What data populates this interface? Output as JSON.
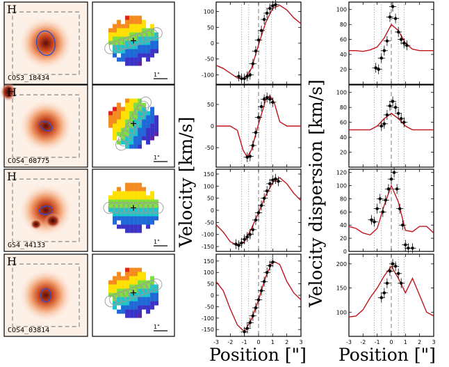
{
  "rows": [
    {
      "id": "COS3_18434",
      "band": "H",
      "scale": "1\"",
      "ellipse": {
        "rx": 0.11,
        "ry": 0.15,
        "rot": -10
      },
      "kin_angle": 72,
      "slit_offset": 0,
      "kin_gradient": [
        "#e0221e",
        "#f58a1e",
        "#ffe000",
        "#7ee03a",
        "#15c7c9",
        "#1e69d8",
        "#3b33c8",
        "#5d22a5"
      ],
      "velocity": {
        "ylim": [
          -130,
          130
        ],
        "yticks": [
          -100,
          -50,
          0,
          50,
          100
        ],
        "points": [
          [
            -1.4,
            -105
          ],
          [
            -1.2,
            -112
          ],
          [
            -1.0,
            -112
          ],
          [
            -0.8,
            -105
          ],
          [
            -0.6,
            -100
          ],
          [
            -0.4,
            -65
          ],
          [
            -0.2,
            -25
          ],
          [
            0.0,
            10
          ],
          [
            0.2,
            40
          ],
          [
            0.4,
            75
          ],
          [
            0.6,
            95
          ],
          [
            0.8,
            110
          ],
          [
            1.0,
            118
          ],
          [
            1.2,
            122
          ]
        ],
        "curve": [
          [
            -3,
            -70
          ],
          [
            -2.5,
            -80
          ],
          [
            -2.0,
            -95
          ],
          [
            -1.5,
            -110
          ],
          [
            -1.0,
            -112
          ],
          [
            -0.5,
            -80
          ],
          [
            0.0,
            -5
          ],
          [
            0.5,
            65
          ],
          [
            1.0,
            110
          ],
          [
            1.5,
            120
          ],
          [
            2.0,
            105
          ],
          [
            2.5,
            80
          ],
          [
            3.0,
            62
          ]
        ]
      },
      "dispersion": {
        "ylim": [
          0,
          110
        ],
        "yticks": [
          20,
          40,
          60,
          80,
          100
        ],
        "points": [
          [
            -1.1,
            22
          ],
          [
            -0.9,
            20
          ],
          [
            -0.7,
            35
          ],
          [
            -0.5,
            45
          ],
          [
            -0.3,
            58
          ],
          [
            -0.1,
            90
          ],
          [
            0.1,
            104
          ],
          [
            0.3,
            88
          ],
          [
            0.5,
            70
          ],
          [
            0.7,
            60
          ],
          [
            0.9,
            55
          ],
          [
            1.1,
            52
          ]
        ],
        "curve": [
          [
            -3,
            45
          ],
          [
            -2.5,
            45
          ],
          [
            -2.0,
            44
          ],
          [
            -1.5,
            46
          ],
          [
            -1.0,
            50
          ],
          [
            -0.5,
            62
          ],
          [
            0.0,
            80
          ],
          [
            0.5,
            72
          ],
          [
            1.0,
            55
          ],
          [
            1.5,
            47
          ],
          [
            2.0,
            45
          ],
          [
            2.5,
            45
          ],
          [
            3.0,
            45
          ]
        ]
      }
    },
    {
      "id": "COS4_08775",
      "band": "H",
      "scale": "1\"",
      "ellipse": {
        "rx": 0.08,
        "ry": 0.05,
        "rot": 30
      },
      "kin_angle": 30,
      "slit_offset": 0,
      "kin_gradient": [
        "#e0221e",
        "#f58a1e",
        "#ffe000",
        "#7ee03a",
        "#15c7c9",
        "#1e69d8",
        "#3b33c8",
        "#5d22a5"
      ],
      "velocity": {
        "ylim": [
          -95,
          95
        ],
        "yticks": [
          -50,
          0,
          50
        ],
        "points": [
          [
            -0.8,
            -72
          ],
          [
            -0.6,
            -70
          ],
          [
            -0.4,
            -45
          ],
          [
            -0.2,
            -15
          ],
          [
            0.0,
            20
          ],
          [
            0.2,
            45
          ],
          [
            0.4,
            62
          ],
          [
            0.6,
            66
          ],
          [
            0.8,
            62
          ],
          [
            1.0,
            55
          ]
        ],
        "curve": [
          [
            -3,
            0
          ],
          [
            -2.5,
            0
          ],
          [
            -2.0,
            0
          ],
          [
            -1.5,
            -10
          ],
          [
            -1.1,
            -55
          ],
          [
            -0.8,
            -72
          ],
          [
            -0.5,
            -55
          ],
          [
            0.0,
            5
          ],
          [
            0.5,
            60
          ],
          [
            0.8,
            70
          ],
          [
            1.1,
            55
          ],
          [
            1.5,
            10
          ],
          [
            2.0,
            0
          ],
          [
            2.5,
            0
          ],
          [
            3.0,
            0
          ]
        ]
      },
      "dispersion": {
        "ylim": [
          0,
          110
        ],
        "yticks": [
          20,
          40,
          60,
          80,
          100
        ],
        "points": [
          [
            -0.7,
            55
          ],
          [
            -0.5,
            58
          ],
          [
            -0.3,
            70
          ],
          [
            -0.1,
            82
          ],
          [
            0.1,
            88
          ],
          [
            0.3,
            80
          ],
          [
            0.5,
            72
          ],
          [
            0.7,
            65
          ],
          [
            0.9,
            60
          ]
        ],
        "curve": [
          [
            -3,
            50
          ],
          [
            -2.5,
            50
          ],
          [
            -2.0,
            50
          ],
          [
            -1.5,
            50
          ],
          [
            -1.0,
            55
          ],
          [
            -0.5,
            65
          ],
          [
            0.0,
            72
          ],
          [
            0.5,
            65
          ],
          [
            1.0,
            55
          ],
          [
            1.5,
            50
          ],
          [
            2.0,
            50
          ],
          [
            2.5,
            50
          ],
          [
            3.0,
            50
          ]
        ]
      }
    },
    {
      "id": "GS4_44133",
      "band": "H",
      "scale": "1\"",
      "ellipse": {
        "rx": 0.08,
        "ry": 0.05,
        "rot": -10
      },
      "kin_angle": 90,
      "slit_offset": 0,
      "kin_gradient": [
        "#e0221e",
        "#f58a1e",
        "#ffe000",
        "#7ee03a",
        "#15c7c9",
        "#1e69d8",
        "#3b33c8",
        "#5d22a5"
      ],
      "velocity": {
        "ylim": [
          -170,
          170
        ],
        "yticks": [
          -150,
          -100,
          -50,
          0,
          50,
          100,
          150
        ],
        "points": [
          [
            -1.6,
            -140
          ],
          [
            -1.4,
            -145
          ],
          [
            -1.2,
            -135
          ],
          [
            -1.0,
            -120
          ],
          [
            -0.8,
            -110
          ],
          [
            -0.6,
            -100
          ],
          [
            -0.4,
            -80
          ],
          [
            -0.2,
            -40
          ],
          [
            0.0,
            -10
          ],
          [
            0.2,
            20
          ],
          [
            0.4,
            50
          ],
          [
            0.6,
            80
          ],
          [
            0.8,
            110
          ],
          [
            1.0,
            125
          ],
          [
            1.2,
            130
          ],
          [
            1.4,
            120
          ]
        ],
        "curve": [
          [
            -3,
            -60
          ],
          [
            -2.5,
            -90
          ],
          [
            -2.0,
            -130
          ],
          [
            -1.5,
            -145
          ],
          [
            -1.0,
            -130
          ],
          [
            -0.5,
            -75
          ],
          [
            0.0,
            -10
          ],
          [
            0.5,
            60
          ],
          [
            1.0,
            115
          ],
          [
            1.5,
            135
          ],
          [
            2.0,
            110
          ],
          [
            2.5,
            70
          ],
          [
            3.0,
            40
          ]
        ]
      },
      "dispersion": {
        "ylim": [
          0,
          125
        ],
        "yticks": [
          0,
          20,
          40,
          60,
          80,
          100,
          120
        ],
        "points": [
          [
            -1.4,
            48
          ],
          [
            -1.2,
            45
          ],
          [
            -1.0,
            65
          ],
          [
            -0.8,
            80
          ],
          [
            -0.6,
            60
          ],
          [
            -0.4,
            78
          ],
          [
            -0.2,
            95
          ],
          [
            0.0,
            110
          ],
          [
            0.2,
            120
          ],
          [
            0.4,
            95
          ],
          [
            0.6,
            65
          ],
          [
            0.8,
            40
          ],
          [
            1.0,
            10
          ],
          [
            1.2,
            5
          ],
          [
            1.5,
            5
          ]
        ],
        "curve": [
          [
            -3,
            38
          ],
          [
            -2.5,
            35
          ],
          [
            -2.0,
            28
          ],
          [
            -1.5,
            25
          ],
          [
            -1.0,
            35
          ],
          [
            -0.5,
            70
          ],
          [
            0.0,
            100
          ],
          [
            0.5,
            75
          ],
          [
            1.0,
            32
          ],
          [
            1.5,
            30
          ],
          [
            2.0,
            38
          ],
          [
            2.5,
            38
          ],
          [
            3.0,
            28
          ]
        ]
      }
    },
    {
      "id": "COS4_03814",
      "band": "H",
      "scale": "1\"",
      "ellipse": {
        "rx": 0.06,
        "ry": 0.08,
        "rot": 0
      },
      "kin_angle": 70,
      "slit_offset": 0,
      "kin_gradient": [
        "#e0221e",
        "#f58a1e",
        "#ffe000",
        "#7ee03a",
        "#15c7c9",
        "#1e69d8",
        "#3b33c8",
        "#5d22a5"
      ],
      "velocity": {
        "ylim": [
          -180,
          180
        ],
        "yticks": [
          -150,
          -100,
          -50,
          0,
          50,
          100,
          150
        ],
        "points": [
          [
            -1.0,
            -160
          ],
          [
            -0.8,
            -145
          ],
          [
            -0.6,
            -120
          ],
          [
            -0.4,
            -90
          ],
          [
            -0.2,
            -55
          ],
          [
            0.0,
            -20
          ],
          [
            0.2,
            20
          ],
          [
            0.4,
            60
          ],
          [
            0.6,
            100
          ],
          [
            0.8,
            130
          ],
          [
            1.0,
            145
          ]
        ],
        "curve": [
          [
            -3,
            60
          ],
          [
            -2.5,
            20
          ],
          [
            -2.0,
            -60
          ],
          [
            -1.5,
            -130
          ],
          [
            -1.0,
            -160
          ],
          [
            -0.5,
            -105
          ],
          [
            0.0,
            -20
          ],
          [
            0.5,
            80
          ],
          [
            1.0,
            150
          ],
          [
            1.5,
            135
          ],
          [
            2.0,
            60
          ],
          [
            2.5,
            10
          ],
          [
            3.0,
            -20
          ]
        ]
      },
      "dispersion": {
        "ylim": [
          50,
          220
        ],
        "yticks": [
          100,
          150,
          200
        ],
        "points": [
          [
            -0.7,
            130
          ],
          [
            -0.5,
            140
          ],
          [
            -0.3,
            160
          ],
          [
            -0.1,
            185
          ],
          [
            0.1,
            200
          ],
          [
            0.3,
            195
          ],
          [
            0.5,
            180
          ],
          [
            0.7,
            160
          ]
        ],
        "curve": [
          [
            -3,
            90
          ],
          [
            -2.5,
            92
          ],
          [
            -2.0,
            105
          ],
          [
            -1.5,
            130
          ],
          [
            -1.0,
            150
          ],
          [
            -0.5,
            175
          ],
          [
            0.0,
            195
          ],
          [
            0.5,
            170
          ],
          [
            1.0,
            140
          ],
          [
            1.5,
            170
          ],
          [
            2.0,
            135
          ],
          [
            2.5,
            100
          ],
          [
            3.0,
            92
          ]
        ]
      }
    }
  ],
  "chart_data": {
    "type": "scatter",
    "ylabel_velocity": "Velocity [km/s]",
    "ylabel_dispersion": "Velocity dispersion [km/s]",
    "xlabel": "Position [\"]",
    "xlim": [
      -3,
      3
    ],
    "xticks": [
      "-3",
      "-2",
      "-1",
      "0",
      "1",
      "2",
      "3"
    ]
  }
}
